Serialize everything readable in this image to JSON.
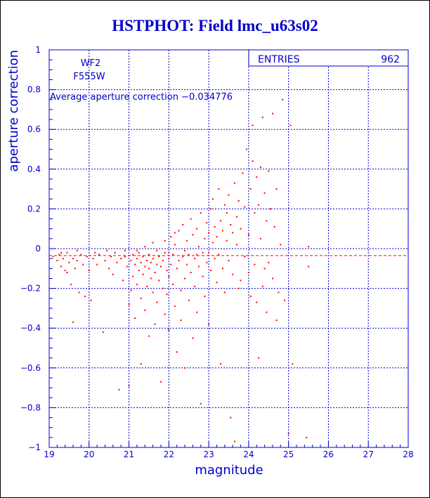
{
  "chart_data": {
    "type": "scatter",
    "title": "HSTPHOT: Field lmc_u63s02",
    "xlabel": "magnitude",
    "ylabel": "aperture correction",
    "xlim": [
      19,
      28
    ],
    "ylim": [
      -1,
      1
    ],
    "x_ticks": [
      19,
      20,
      21,
      22,
      23,
      24,
      25,
      26,
      27,
      28
    ],
    "y_ticks": [
      -1,
      -0.8,
      -0.6,
      -0.4,
      -0.2,
      0,
      0.2,
      0.4,
      0.6,
      0.8,
      1
    ],
    "x_tick_labels": [
      "19",
      "20",
      "21",
      "22",
      "23",
      "24",
      "25",
      "26",
      "27",
      "28"
    ],
    "y_tick_labels": [
      "−1",
      "−0.8",
      "−0.6",
      "−0.4",
      "−0.2",
      "0",
      "0.2",
      "0.4",
      "0.6",
      "0.8",
      "1"
    ],
    "grid": true,
    "camera": "WF2",
    "filter": "F555W",
    "average_text": "Average aperture correction −0.034776",
    "average_value": -0.034776,
    "stats_label": "ENTRIES",
    "stats_value": "962",
    "points": [
      [
        19.1,
        -0.04
      ],
      [
        19.2,
        -0.06
      ],
      [
        19.25,
        -0.03
      ],
      [
        19.3,
        -0.09
      ],
      [
        19.35,
        -0.05
      ],
      [
        19.4,
        -0.11
      ],
      [
        19.45,
        -0.02
      ],
      [
        19.5,
        -0.07
      ],
      [
        19.55,
        -0.18
      ],
      [
        19.6,
        -0.05
      ],
      [
        19.65,
        -0.1
      ],
      [
        19.7,
        -0.06
      ],
      [
        19.75,
        -0.22
      ],
      [
        19.8,
        -0.03
      ],
      [
        19.85,
        -0.08
      ],
      [
        19.9,
        -0.24
      ],
      [
        19.95,
        -0.04
      ],
      [
        20.0,
        -0.11
      ],
      [
        20.05,
        -0.26
      ],
      [
        19.6,
        -0.37
      ],
      [
        19.3,
        -0.02
      ],
      [
        19.45,
        -0.12
      ],
      [
        20.1,
        -0.05
      ],
      [
        20.2,
        -0.08
      ],
      [
        20.25,
        -0.03
      ],
      [
        20.35,
        -0.42
      ],
      [
        20.4,
        -0.06
      ],
      [
        20.5,
        -0.1
      ],
      [
        20.55,
        -0.04
      ],
      [
        20.6,
        -0.13
      ],
      [
        20.65,
        -0.02
      ],
      [
        20.7,
        -0.07
      ],
      [
        20.75,
        -0.71
      ],
      [
        20.8,
        -0.05
      ],
      [
        20.85,
        -0.16
      ],
      [
        20.9,
        -0.04
      ],
      [
        20.95,
        -0.09
      ],
      [
        21.0,
        -0.69
      ],
      [
        21.0,
        -0.28
      ],
      [
        21.05,
        -0.06
      ],
      [
        21.05,
        -0.21
      ],
      [
        21.1,
        -0.03
      ],
      [
        21.1,
        -0.14
      ],
      [
        21.15,
        -0.08
      ],
      [
        21.15,
        -0.35
      ],
      [
        21.2,
        -0.05
      ],
      [
        21.2,
        -0.18
      ],
      [
        21.25,
        -0.02
      ],
      [
        21.25,
        -0.11
      ],
      [
        21.3,
        -0.07
      ],
      [
        21.3,
        -0.25
      ],
      [
        21.3,
        -0.58
      ],
      [
        21.35,
        -0.04
      ],
      [
        21.35,
        -0.13
      ],
      [
        21.4,
        -0.09
      ],
      [
        21.4,
        -0.31
      ],
      [
        21.45,
        -0.06
      ],
      [
        21.45,
        -0.19
      ],
      [
        21.5,
        -0.03
      ],
      [
        21.5,
        -0.1
      ],
      [
        21.5,
        -0.44
      ],
      [
        21.55,
        -0.15
      ],
      [
        21.55,
        -0.07
      ],
      [
        21.6,
        -0.22
      ],
      [
        21.6,
        -0.05
      ],
      [
        21.65,
        -0.12
      ],
      [
        21.65,
        -0.38
      ],
      [
        21.7,
        -0.08
      ],
      [
        21.7,
        -0.27
      ],
      [
        21.75,
        -0.04
      ],
      [
        21.75,
        -0.16
      ],
      [
        21.8,
        -0.67
      ],
      [
        21.8,
        -0.09
      ],
      [
        21.85,
        -0.2
      ],
      [
        21.85,
        -0.06
      ],
      [
        21.9,
        -0.33
      ],
      [
        21.9,
        -0.02
      ],
      [
        21.95,
        -0.11
      ],
      [
        21.95,
        -0.23
      ],
      [
        22.0,
        -0.05
      ],
      [
        22.0,
        -0.14
      ],
      [
        22.0,
        -0.41
      ],
      [
        22.05,
        -0.08
      ],
      [
        22.05,
        0.06
      ],
      [
        22.1,
        -0.18
      ],
      [
        22.1,
        -0.03
      ],
      [
        22.15,
        -0.29
      ],
      [
        22.15,
        0.02
      ],
      [
        22.2,
        -0.1
      ],
      [
        22.2,
        -0.52
      ],
      [
        22.25,
        -0.06
      ],
      [
        22.25,
        0.09
      ],
      [
        22.3,
        -0.21
      ],
      [
        22.3,
        -0.36
      ],
      [
        22.35,
        -0.04
      ],
      [
        22.35,
        0.12
      ],
      [
        22.4,
        -0.15
      ],
      [
        22.4,
        -0.6
      ],
      [
        22.45,
        -0.08
      ],
      [
        22.45,
        0.04
      ],
      [
        22.5,
        -0.26
      ],
      [
        22.5,
        -0.03
      ],
      [
        22.55,
        0.15
      ],
      [
        22.55,
        -0.12
      ],
      [
        22.6,
        -0.45
      ],
      [
        22.6,
        0.07
      ],
      [
        22.65,
        -0.19
      ],
      [
        22.65,
        -0.05
      ],
      [
        22.7,
        0.1
      ],
      [
        22.7,
        -0.32
      ],
      [
        22.75,
        -0.09
      ],
      [
        22.75,
        0.01
      ],
      [
        22.8,
        -0.78
      ],
      [
        22.8,
        0.18
      ],
      [
        22.85,
        -0.14
      ],
      [
        22.85,
        -0.02
      ],
      [
        22.9,
        0.05
      ],
      [
        22.9,
        -0.24
      ],
      [
        22.95,
        0.13
      ],
      [
        22.95,
        -0.07
      ],
      [
        23.0,
        0.08
      ],
      [
        23.0,
        -0.38
      ],
      [
        23.05,
        0.2
      ],
      [
        23.05,
        -0.11
      ],
      [
        23.1,
        0.03
      ],
      [
        23.1,
        0.25
      ],
      [
        23.15,
        -0.05
      ],
      [
        23.15,
        0.11
      ],
      [
        23.2,
        -0.17
      ],
      [
        23.2,
        0.06
      ],
      [
        23.25,
        0.3
      ],
      [
        23.25,
        -0.03
      ],
      [
        23.3,
        0.14
      ],
      [
        23.3,
        -0.58
      ],
      [
        23.35,
        0.09
      ],
      [
        23.35,
        -0.1
      ],
      [
        23.4,
        0.22
      ],
      [
        23.4,
        -0.22
      ],
      [
        23.45,
        0.04
      ],
      [
        23.45,
        0.18
      ],
      [
        23.5,
        -0.06
      ],
      [
        23.5,
        0.27
      ],
      [
        23.55,
        -0.85
      ],
      [
        23.55,
        0.12
      ],
      [
        23.6,
        -0.13
      ],
      [
        23.6,
        0.08
      ],
      [
        23.65,
        0.33
      ],
      [
        23.65,
        -0.97
      ],
      [
        23.7,
        0.16
      ],
      [
        23.7,
        0.02
      ],
      [
        23.75,
        -0.2
      ],
      [
        23.75,
        0.24
      ],
      [
        23.8,
        0.1
      ],
      [
        23.8,
        -0.16
      ],
      [
        23.85,
        0.38
      ],
      [
        23.9,
        -0.04
      ],
      [
        23.9,
        0.21
      ],
      [
        23.95,
        0.5
      ],
      [
        24.0,
        -0.12
      ],
      [
        24.0,
        0.07
      ],
      [
        24.05,
        0.3
      ],
      [
        24.05,
        -0.24
      ],
      [
        24.1,
        0.62
      ],
      [
        24.1,
        0.44
      ],
      [
        24.15,
        -0.08
      ],
      [
        24.15,
        0.18
      ],
      [
        24.2,
        0.36
      ],
      [
        24.2,
        -0.27
      ],
      [
        24.25,
        0.22
      ],
      [
        24.25,
        -0.55
      ],
      [
        24.3,
        0.41
      ],
      [
        24.3,
        0.05
      ],
      [
        24.35,
        -0.19
      ],
      [
        24.35,
        0.66
      ],
      [
        24.4,
        0.28
      ],
      [
        24.4,
        -0.1
      ],
      [
        24.45,
        0.14
      ],
      [
        24.45,
        -0.32
      ],
      [
        24.5,
        0.39
      ],
      [
        24.5,
        -0.07
      ],
      [
        24.55,
        0.2
      ],
      [
        24.6,
        0.68
      ],
      [
        24.6,
        -0.15
      ],
      [
        24.65,
        0.11
      ],
      [
        24.7,
        -0.36
      ],
      [
        24.7,
        0.3
      ],
      [
        24.75,
        -0.22
      ],
      [
        24.8,
        0.02
      ],
      [
        24.85,
        0.75
      ],
      [
        24.9,
        -0.26
      ],
      [
        25.0,
        -0.93
      ],
      [
        25.05,
        0.62
      ],
      [
        25.1,
        -0.58
      ],
      [
        25.45,
        -0.95
      ],
      [
        25.5,
        0.01
      ],
      [
        25.5,
        -0.09
      ],
      [
        21.4,
        0.01
      ],
      [
        21.6,
        0.03
      ],
      [
        21.9,
        0.04
      ],
      [
        22.15,
        0.08
      ],
      [
        20.15,
        -0.02
      ],
      [
        20.45,
        -0.01
      ],
      [
        20.9,
        -0.01
      ],
      [
        21.2,
        -0.01
      ],
      [
        21.7,
        -0.01
      ],
      [
        22.0,
        -0.02
      ],
      [
        22.4,
        -0.01
      ],
      [
        22.7,
        -0.03
      ],
      [
        23.0,
        -0.02
      ],
      [
        19.7,
        -0.01
      ]
    ]
  }
}
